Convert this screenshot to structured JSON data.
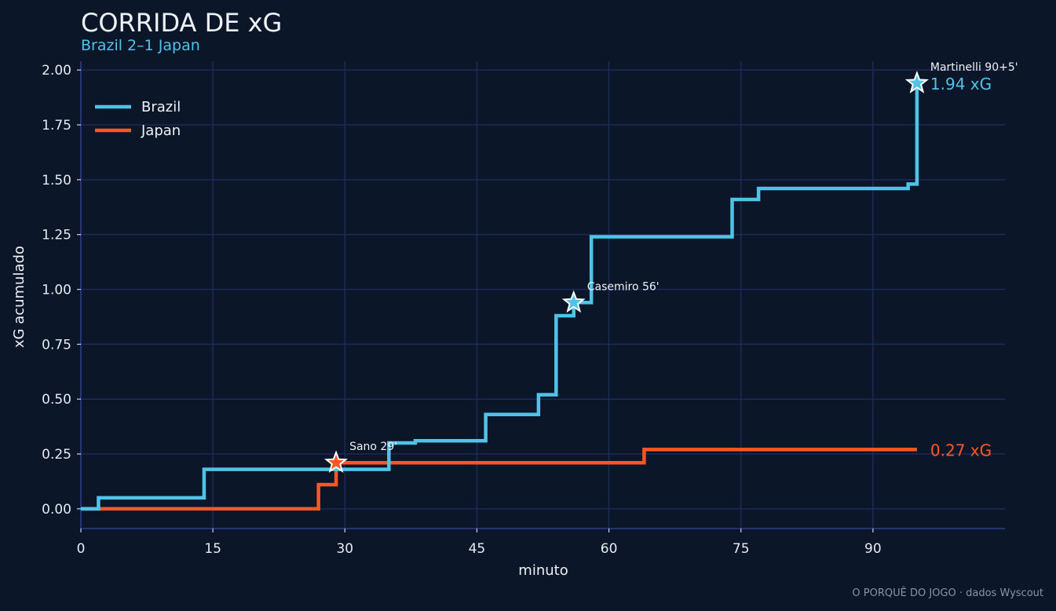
{
  "header": {
    "title": "CORRIDA DE xG",
    "subtitle": "Brazil 2–1 Japan"
  },
  "footer": {
    "credit": "O PORQUÊ DO JOGO · dados Wyscout"
  },
  "colors": {
    "background": "#0b1628",
    "grid": "#1c2b57",
    "axis": "#2e3a8c",
    "brazil": "#4fc3e8",
    "japan": "#ff5722"
  },
  "chart_data": {
    "type": "line",
    "step": true,
    "title": "CORRIDA DE xG",
    "subtitle": "Brazil 2–1 Japan",
    "xlabel": "minuto",
    "ylabel": "xG acumulado",
    "xlim": [
      0,
      105
    ],
    "ylim": [
      -0.09,
      2.04
    ],
    "xticks": [
      0,
      15,
      30,
      45,
      60,
      75,
      90
    ],
    "yticks": [
      0.0,
      0.25,
      0.5,
      0.75,
      1.0,
      1.25,
      1.5,
      1.75,
      2.0
    ],
    "grid": true,
    "legend": "top-left",
    "series": [
      {
        "name": "Brazil",
        "color": "#4fc3e8",
        "x": [
          0,
          2,
          14,
          34,
          35,
          38,
          46,
          52,
          54,
          56,
          58,
          74,
          77,
          94,
          95
        ],
        "y": [
          0.0,
          0.05,
          0.18,
          0.18,
          0.3,
          0.31,
          0.43,
          0.52,
          0.88,
          0.94,
          1.24,
          1.41,
          1.46,
          1.48,
          1.94
        ],
        "end_x": 95,
        "end_label": "1.94 xG"
      },
      {
        "name": "Japan",
        "color": "#ff5722",
        "x": [
          0,
          27,
          29,
          64
        ],
        "y": [
          0.0,
          0.11,
          0.21,
          0.27
        ],
        "end_x": 95,
        "end_label": "0.27 xG"
      }
    ],
    "annotations": [
      {
        "label": "Sano 29'",
        "x": 29,
        "y": 0.21,
        "team": "Japan"
      },
      {
        "label": "Casemiro 56'",
        "x": 56,
        "y": 0.94,
        "team": "Brazil"
      },
      {
        "label": "Martinelli 90+5'",
        "x": 95,
        "y": 1.94,
        "team": "Brazil"
      }
    ]
  }
}
